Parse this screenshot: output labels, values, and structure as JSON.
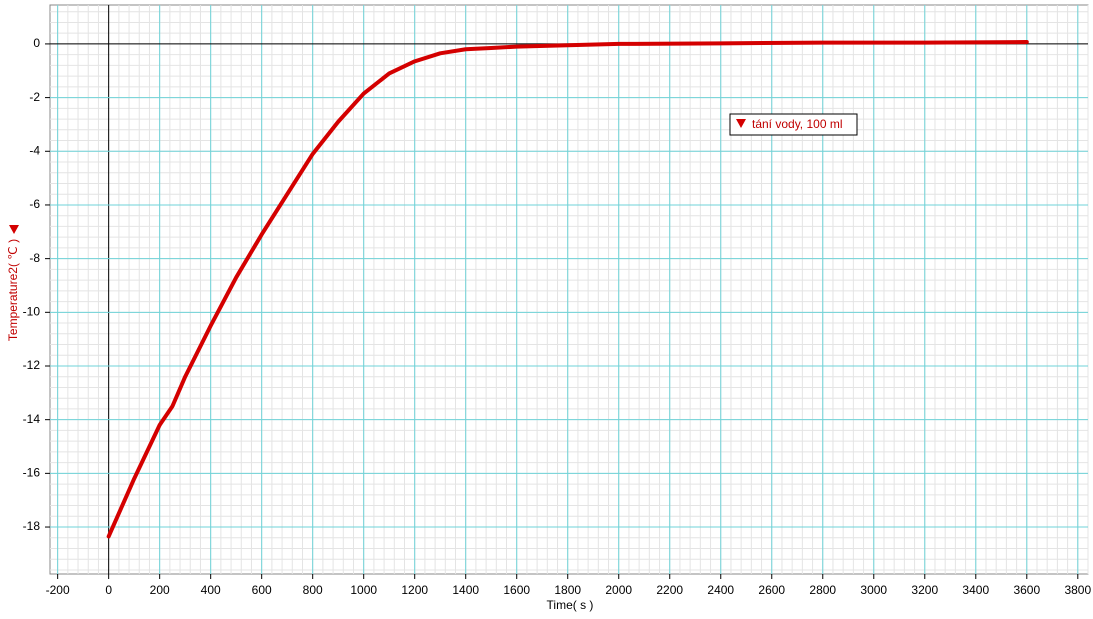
{
  "chart_data": {
    "type": "line",
    "x_label": "Time( s )",
    "y_label": "Temperature2( ℃ )",
    "x": [
      0,
      100,
      200,
      250,
      300,
      400,
      500,
      600,
      700,
      800,
      900,
      1000,
      1100,
      1200,
      1300,
      1400,
      1500,
      1600,
      1800,
      2000,
      2400,
      2800,
      3200,
      3600
    ],
    "series": [
      {
        "name": "tání vody, 100 ml",
        "color": "#d40000",
        "values": [
          -18.35,
          -16.2,
          -14.2,
          -13.5,
          -12.4,
          -10.5,
          -8.7,
          -7.1,
          -5.6,
          -4.1,
          -2.9,
          -1.85,
          -1.1,
          -0.65,
          -0.35,
          -0.2,
          -0.15,
          -0.1,
          -0.05,
          0,
          0.02,
          0.05,
          0.05,
          0.07
        ]
      }
    ],
    "xlim": [
      -230,
      3840
    ],
    "ylim": [
      -19.75,
      1.45
    ],
    "xticks": [
      -200,
      0,
      200,
      400,
      600,
      800,
      1000,
      1200,
      1400,
      1600,
      1800,
      2000,
      2200,
      2400,
      2600,
      2800,
      3000,
      3200,
      3400,
      3600,
      3800
    ],
    "yticks": [
      -18,
      -16,
      -14,
      -12,
      -10,
      -8,
      -6,
      -4,
      -2,
      0
    ],
    "grid": true,
    "minor_grid": true
  }
}
